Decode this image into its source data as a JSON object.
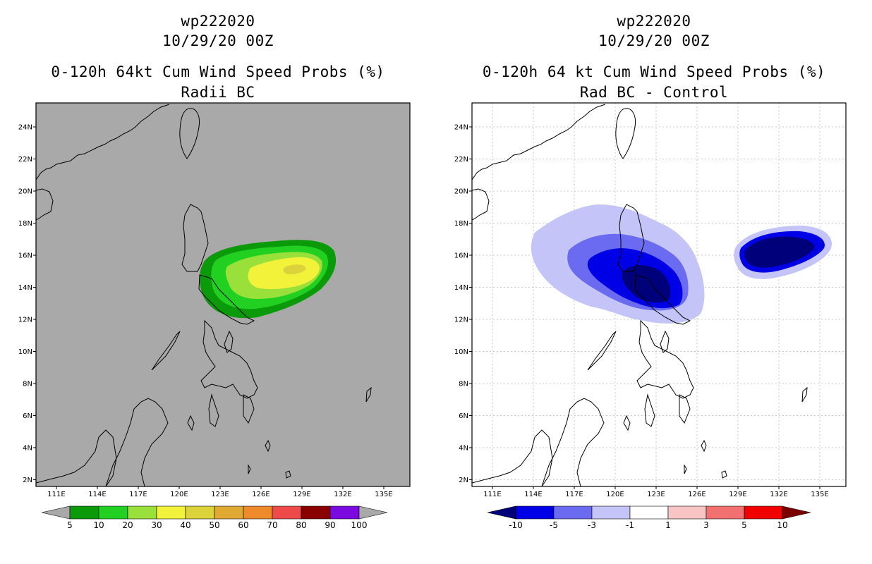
{
  "left": {
    "title_line1": "wp222020",
    "title_line2": "10/29/20 00Z",
    "title_line3": "0-120h 64kt Cum Wind Speed Probs (%)",
    "title_line4": "Radii BC",
    "background": "#a9a9a9",
    "colorbar": {
      "labels": [
        "5",
        "10",
        "20",
        "30",
        "40",
        "50",
        "60",
        "70",
        "80",
        "90",
        "100"
      ],
      "colors": [
        "#0a9a0a",
        "#22d022",
        "#99e03a",
        "#f2f23a",
        "#dcd23a",
        "#e0aa32",
        "#ee8a2a",
        "#ee4a4a",
        "#8a0000",
        "#7a0ae0"
      ],
      "under_color": "#a9a9a9",
      "over_color": "#a9a9a9"
    }
  },
  "right": {
    "title_line1": "wp222020",
    "title_line2": "10/29/20 00Z",
    "title_line3": "0-120h 64 kt Cum Wind Speed Probs (%)",
    "title_line4": "Rad BC - Control",
    "background": "#ffffff",
    "colorbar": {
      "labels": [
        "-10",
        "-5",
        "-3",
        "-1",
        "1",
        "3",
        "5",
        "10"
      ],
      "colors": [
        "#0000e6",
        "#6b6bf2",
        "#c4c4f8",
        "#ffffff",
        "#f8c4c4",
        "#f27070",
        "#f20000"
      ],
      "under_color": "#00007a",
      "over_color": "#7a0000"
    }
  },
  "axes": {
    "lon_labels": [
      "111E",
      "114E",
      "117E",
      "120E",
      "123E",
      "126E",
      "129E",
      "132E",
      "135E"
    ],
    "lat_labels": [
      "24N",
      "22N",
      "20N",
      "18N",
      "16N",
      "14N",
      "12N",
      "10N",
      "8N",
      "6N",
      "4N",
      "2N"
    ]
  }
}
